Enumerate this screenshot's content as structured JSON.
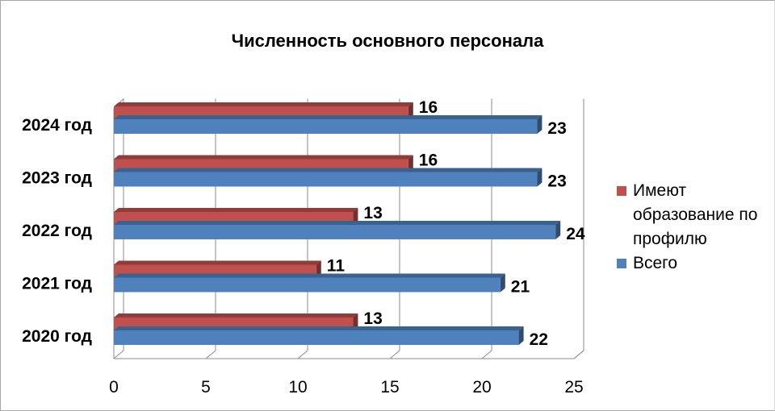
{
  "chart_data": {
    "type": "bar",
    "orientation": "horizontal",
    "title": "Численность основного персонала",
    "categories": [
      "2020 год",
      "2021 год",
      "2022 год",
      "2023 год",
      "2024 год"
    ],
    "series": [
      {
        "name": "Всего",
        "color": "#4f81bd",
        "values": [
          22,
          21,
          24,
          23,
          23
        ]
      },
      {
        "name": " Имеют образование по профилю",
        "color": "#c0504d",
        "values": [
          13,
          11,
          13,
          16,
          16
        ]
      }
    ],
    "xlim": [
      0,
      25
    ],
    "xticks": [
      "0",
      "5",
      "10",
      "15",
      "20",
      "25"
    ],
    "grid": true,
    "legend_position": "right",
    "style": "3d",
    "data_labels": true
  }
}
